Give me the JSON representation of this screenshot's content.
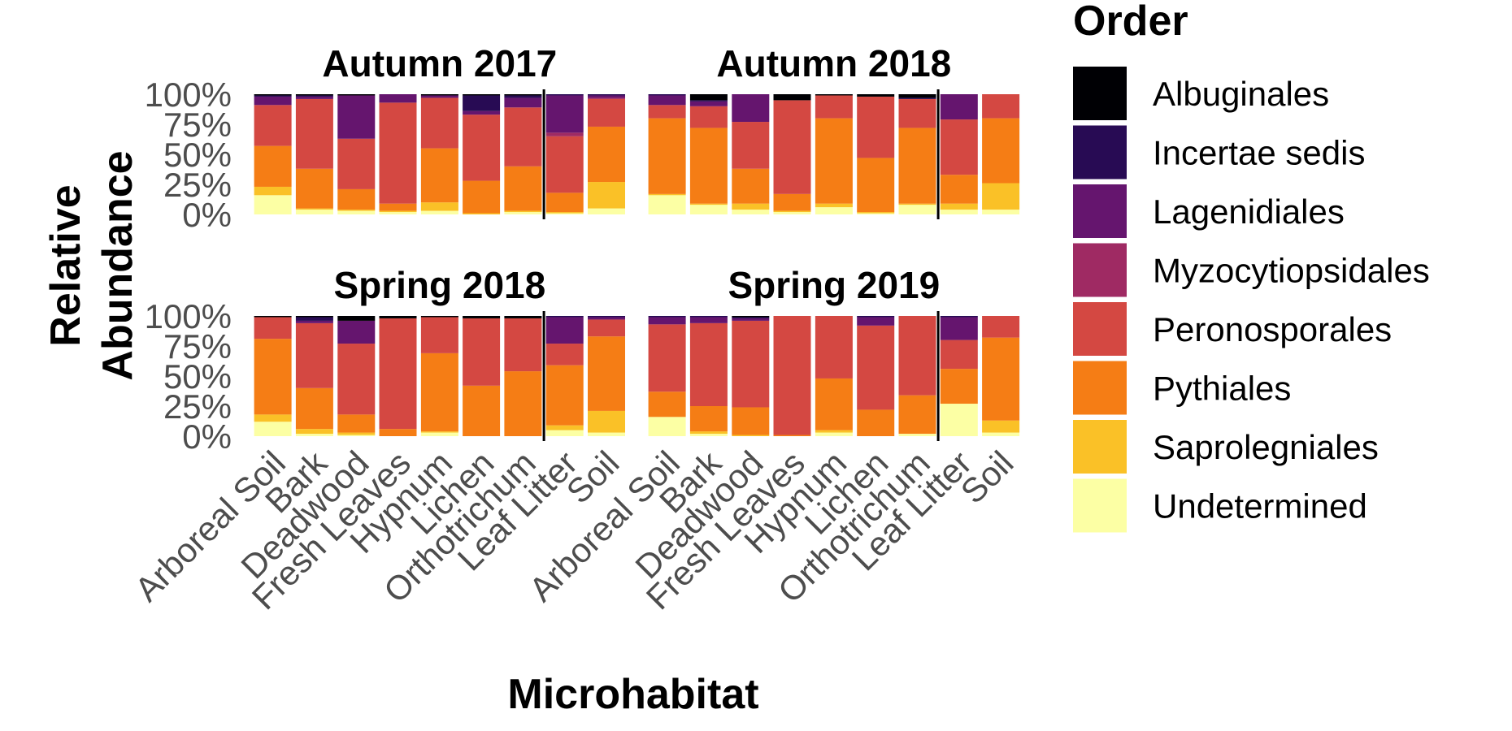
{
  "chart_data": {
    "type": "bar",
    "stacked": true,
    "normalized": true,
    "ylabel": [
      "Relative",
      "Abundance"
    ],
    "xlabel": "Microhabitat",
    "yticks": [
      "0%",
      "25%",
      "50%",
      "75%",
      "100%"
    ],
    "ylim": [
      0,
      1
    ],
    "categories": [
      "Arboreal Soil",
      "Bark",
      "Deadwood",
      "Fresh Leaves",
      "Hypnum",
      "Lichen",
      "Orthotrichum",
      "Leaf Litter",
      "Soil"
    ],
    "divider_after": "Orthotrichum",
    "legend": {
      "title": "Order",
      "position": "right",
      "entries": [
        {
          "name": "Albuginales",
          "color": "#000004"
        },
        {
          "name": "Incertae sedis",
          "color": "#280b54"
        },
        {
          "name": "Lagenidiales",
          "color": "#65156e"
        },
        {
          "name": "Myzocytiopsidales",
          "color": "#9f2a63"
        },
        {
          "name": "Peronosporales",
          "color": "#d44842"
        },
        {
          "name": "Pythiales",
          "color": "#f57d15"
        },
        {
          "name": "Saprolegniales",
          "color": "#fac127"
        },
        {
          "name": "Undetermined",
          "color": "#fcffa4"
        }
      ]
    },
    "stack_order_bottom_to_top": [
      "Undetermined",
      "Saprolegniales",
      "Pythiales",
      "Peronosporales",
      "Myzocytiopsidales",
      "Lagenidiales",
      "Incertae sedis",
      "Albuginales"
    ],
    "panels": [
      {
        "title": "Autumn 2017",
        "bars": [
          {
            "category": "Arboreal Soil",
            "values": {
              "Undetermined": 0.16,
              "Saprolegniales": 0.07,
              "Pythiales": 0.34,
              "Peronosporales": 0.34,
              "Myzocytiopsidales": 0.0,
              "Lagenidiales": 0.07,
              "Incertae sedis": 0.01,
              "Albuginales": 0.01
            }
          },
          {
            "category": "Bark",
            "values": {
              "Undetermined": 0.04,
              "Saprolegniales": 0.01,
              "Pythiales": 0.33,
              "Peronosporales": 0.58,
              "Myzocytiopsidales": 0.0,
              "Lagenidiales": 0.02,
              "Incertae sedis": 0.01,
              "Albuginales": 0.01
            }
          },
          {
            "category": "Deadwood",
            "values": {
              "Undetermined": 0.03,
              "Saprolegniales": 0.01,
              "Pythiales": 0.17,
              "Peronosporales": 0.42,
              "Myzocytiopsidales": 0.0,
              "Lagenidiales": 0.36,
              "Incertae sedis": 0.0,
              "Albuginales": 0.01
            }
          },
          {
            "category": "Fresh Leaves",
            "values": {
              "Undetermined": 0.02,
              "Saprolegniales": 0.01,
              "Pythiales": 0.06,
              "Peronosporales": 0.84,
              "Myzocytiopsidales": 0.0,
              "Lagenidiales": 0.07,
              "Incertae sedis": 0.0,
              "Albuginales": 0.0
            }
          },
          {
            "category": "Hypnum",
            "values": {
              "Undetermined": 0.03,
              "Saprolegniales": 0.07,
              "Pythiales": 0.45,
              "Peronosporales": 0.42,
              "Myzocytiopsidales": 0.0,
              "Lagenidiales": 0.02,
              "Incertae sedis": 0.0,
              "Albuginales": 0.01
            }
          },
          {
            "category": "Lichen",
            "values": {
              "Undetermined": 0.0,
              "Saprolegniales": 0.01,
              "Pythiales": 0.27,
              "Peronosporales": 0.55,
              "Myzocytiopsidales": 0.0,
              "Lagenidiales": 0.03,
              "Incertae sedis": 0.13,
              "Albuginales": 0.01
            }
          },
          {
            "category": "Orthotrichum",
            "values": {
              "Undetermined": 0.02,
              "Saprolegniales": 0.01,
              "Pythiales": 0.37,
              "Peronosporales": 0.49,
              "Myzocytiopsidales": 0.0,
              "Lagenidiales": 0.08,
              "Incertae sedis": 0.02,
              "Albuginales": 0.01
            }
          },
          {
            "category": "Leaf Litter",
            "values": {
              "Undetermined": 0.01,
              "Saprolegniales": 0.01,
              "Pythiales": 0.16,
              "Peronosporales": 0.47,
              "Myzocytiopsidales": 0.03,
              "Lagenidiales": 0.31,
              "Incertae sedis": 0.01,
              "Albuginales": 0.0
            }
          },
          {
            "category": "Soil",
            "values": {
              "Undetermined": 0.05,
              "Saprolegniales": 0.22,
              "Pythiales": 0.46,
              "Peronosporales": 0.23,
              "Myzocytiopsidales": 0.01,
              "Lagenidiales": 0.02,
              "Incertae sedis": 0.01,
              "Albuginales": 0.0
            }
          }
        ]
      },
      {
        "title": "Autumn 2018",
        "bars": [
          {
            "category": "Arboreal Soil",
            "values": {
              "Undetermined": 0.16,
              "Saprolegniales": 0.01,
              "Pythiales": 0.63,
              "Peronosporales": 0.11,
              "Myzocytiopsidales": 0.0,
              "Lagenidiales": 0.08,
              "Incertae sedis": 0.01,
              "Albuginales": 0.0
            }
          },
          {
            "category": "Bark",
            "values": {
              "Undetermined": 0.08,
              "Saprolegniales": 0.01,
              "Pythiales": 0.63,
              "Peronosporales": 0.18,
              "Myzocytiopsidales": 0.0,
              "Lagenidiales": 0.04,
              "Incertae sedis": 0.01,
              "Albuginales": 0.05
            }
          },
          {
            "category": "Deadwood",
            "values": {
              "Undetermined": 0.04,
              "Saprolegniales": 0.05,
              "Pythiales": 0.29,
              "Peronosporales": 0.39,
              "Myzocytiopsidales": 0.0,
              "Lagenidiales": 0.23,
              "Incertae sedis": 0.0,
              "Albuginales": 0.0
            }
          },
          {
            "category": "Fresh Leaves",
            "values": {
              "Undetermined": 0.02,
              "Saprolegniales": 0.01,
              "Pythiales": 0.14,
              "Peronosporales": 0.78,
              "Myzocytiopsidales": 0.0,
              "Lagenidiales": 0.0,
              "Incertae sedis": 0.0,
              "Albuginales": 0.05
            }
          },
          {
            "category": "Hypnum",
            "values": {
              "Undetermined": 0.06,
              "Saprolegniales": 0.03,
              "Pythiales": 0.71,
              "Peronosporales": 0.19,
              "Myzocytiopsidales": 0.0,
              "Lagenidiales": 0.0,
              "Incertae sedis": 0.0,
              "Albuginales": 0.01
            }
          },
          {
            "category": "Lichen",
            "values": {
              "Undetermined": 0.01,
              "Saprolegniales": 0.01,
              "Pythiales": 0.45,
              "Peronosporales": 0.51,
              "Myzocytiopsidales": 0.0,
              "Lagenidiales": 0.0,
              "Incertae sedis": 0.0,
              "Albuginales": 0.02
            }
          },
          {
            "category": "Orthotrichum",
            "values": {
              "Undetermined": 0.08,
              "Saprolegniales": 0.01,
              "Pythiales": 0.63,
              "Peronosporales": 0.24,
              "Myzocytiopsidales": 0.0,
              "Lagenidiales": 0.0,
              "Incertae sedis": 0.01,
              "Albuginales": 0.03
            }
          },
          {
            "category": "Leaf Litter",
            "values": {
              "Undetermined": 0.04,
              "Saprolegniales": 0.05,
              "Pythiales": 0.24,
              "Peronosporales": 0.46,
              "Myzocytiopsidales": 0.0,
              "Lagenidiales": 0.21,
              "Incertae sedis": 0.0,
              "Albuginales": 0.0
            }
          },
          {
            "category": "Soil",
            "values": {
              "Undetermined": 0.04,
              "Saprolegniales": 0.22,
              "Pythiales": 0.54,
              "Peronosporales": 0.2,
              "Myzocytiopsidales": 0.0,
              "Lagenidiales": 0.0,
              "Incertae sedis": 0.0,
              "Albuginales": 0.0
            }
          }
        ]
      },
      {
        "title": "Spring 2018",
        "bars": [
          {
            "category": "Arboreal Soil",
            "values": {
              "Undetermined": 0.12,
              "Saprolegniales": 0.06,
              "Pythiales": 0.63,
              "Peronosporales": 0.18,
              "Myzocytiopsidales": 0.0,
              "Lagenidiales": 0.0,
              "Incertae sedis": 0.0,
              "Albuginales": 0.01
            }
          },
          {
            "category": "Bark",
            "values": {
              "Undetermined": 0.02,
              "Saprolegniales": 0.04,
              "Pythiales": 0.34,
              "Peronosporales": 0.54,
              "Myzocytiopsidales": 0.0,
              "Lagenidiales": 0.02,
              "Incertae sedis": 0.03,
              "Albuginales": 0.01
            }
          },
          {
            "category": "Deadwood",
            "values": {
              "Undetermined": 0.01,
              "Saprolegniales": 0.02,
              "Pythiales": 0.15,
              "Peronosporales": 0.59,
              "Myzocytiopsidales": 0.0,
              "Lagenidiales": 0.19,
              "Incertae sedis": 0.0,
              "Albuginales": 0.04
            }
          },
          {
            "category": "Fresh Leaves",
            "values": {
              "Undetermined": 0.0,
              "Saprolegniales": 0.0,
              "Pythiales": 0.06,
              "Peronosporales": 0.92,
              "Myzocytiopsidales": 0.0,
              "Lagenidiales": 0.0,
              "Incertae sedis": 0.0,
              "Albuginales": 0.02
            }
          },
          {
            "category": "Hypnum",
            "values": {
              "Undetermined": 0.03,
              "Saprolegniales": 0.01,
              "Pythiales": 0.65,
              "Peronosporales": 0.3,
              "Myzocytiopsidales": 0.0,
              "Lagenidiales": 0.0,
              "Incertae sedis": 0.0,
              "Albuginales": 0.01
            }
          },
          {
            "category": "Lichen",
            "values": {
              "Undetermined": 0.0,
              "Saprolegniales": 0.0,
              "Pythiales": 0.42,
              "Peronosporales": 0.56,
              "Myzocytiopsidales": 0.0,
              "Lagenidiales": 0.0,
              "Incertae sedis": 0.0,
              "Albuginales": 0.02
            }
          },
          {
            "category": "Orthotrichum",
            "values": {
              "Undetermined": 0.0,
              "Saprolegniales": 0.0,
              "Pythiales": 0.54,
              "Peronosporales": 0.44,
              "Myzocytiopsidales": 0.0,
              "Lagenidiales": 0.0,
              "Incertae sedis": 0.0,
              "Albuginales": 0.02
            }
          },
          {
            "category": "Leaf Litter",
            "values": {
              "Undetermined": 0.05,
              "Saprolegniales": 0.04,
              "Pythiales": 0.5,
              "Peronosporales": 0.18,
              "Myzocytiopsidales": 0.0,
              "Lagenidiales": 0.22,
              "Incertae sedis": 0.01,
              "Albuginales": 0.0
            }
          },
          {
            "category": "Soil",
            "values": {
              "Undetermined": 0.03,
              "Saprolegniales": 0.18,
              "Pythiales": 0.62,
              "Peronosporales": 0.14,
              "Myzocytiopsidales": 0.0,
              "Lagenidiales": 0.02,
              "Incertae sedis": 0.01,
              "Albuginales": 0.0
            }
          }
        ]
      },
      {
        "title": "Spring 2019",
        "bars": [
          {
            "category": "Arboreal Soil",
            "values": {
              "Undetermined": 0.16,
              "Saprolegniales": 0.0,
              "Pythiales": 0.21,
              "Peronosporales": 0.56,
              "Myzocytiopsidales": 0.0,
              "Lagenidiales": 0.06,
              "Incertae sedis": 0.01,
              "Albuginales": 0.0
            }
          },
          {
            "category": "Bark",
            "values": {
              "Undetermined": 0.02,
              "Saprolegniales": 0.02,
              "Pythiales": 0.21,
              "Peronosporales": 0.69,
              "Myzocytiopsidales": 0.0,
              "Lagenidiales": 0.05,
              "Incertae sedis": 0.01,
              "Albuginales": 0.0
            }
          },
          {
            "category": "Deadwood",
            "values": {
              "Undetermined": 0.0,
              "Saprolegniales": 0.01,
              "Pythiales": 0.23,
              "Peronosporales": 0.72,
              "Myzocytiopsidales": 0.0,
              "Lagenidiales": 0.02,
              "Incertae sedis": 0.01,
              "Albuginales": 0.01
            }
          },
          {
            "category": "Fresh Leaves",
            "values": {
              "Undetermined": 0.0,
              "Saprolegniales": 0.0,
              "Pythiales": 0.01,
              "Peronosporales": 0.99,
              "Myzocytiopsidales": 0.0,
              "Lagenidiales": 0.0,
              "Incertae sedis": 0.0,
              "Albuginales": 0.0
            }
          },
          {
            "category": "Hypnum",
            "values": {
              "Undetermined": 0.03,
              "Saprolegniales": 0.02,
              "Pythiales": 0.43,
              "Peronosporales": 0.52,
              "Myzocytiopsidales": 0.0,
              "Lagenidiales": 0.0,
              "Incertae sedis": 0.0,
              "Albuginales": 0.0
            }
          },
          {
            "category": "Lichen",
            "values": {
              "Undetermined": 0.0,
              "Saprolegniales": 0.0,
              "Pythiales": 0.22,
              "Peronosporales": 0.7,
              "Myzocytiopsidales": 0.0,
              "Lagenidiales": 0.07,
              "Incertae sedis": 0.01,
              "Albuginales": 0.0
            }
          },
          {
            "category": "Orthotrichum",
            "values": {
              "Undetermined": 0.02,
              "Saprolegniales": 0.0,
              "Pythiales": 0.32,
              "Peronosporales": 0.66,
              "Myzocytiopsidales": 0.0,
              "Lagenidiales": 0.0,
              "Incertae sedis": 0.0,
              "Albuginales": 0.0
            }
          },
          {
            "category": "Leaf Litter",
            "values": {
              "Undetermined": 0.27,
              "Saprolegniales": 0.0,
              "Pythiales": 0.29,
              "Peronosporales": 0.24,
              "Myzocytiopsidales": 0.0,
              "Lagenidiales": 0.19,
              "Incertae sedis": 0.01,
              "Albuginales": 0.0
            }
          },
          {
            "category": "Soil",
            "values": {
              "Undetermined": 0.03,
              "Saprolegniales": 0.1,
              "Pythiales": 0.69,
              "Peronosporales": 0.18,
              "Myzocytiopsidales": 0.0,
              "Lagenidiales": 0.0,
              "Incertae sedis": 0.0,
              "Albuginales": 0.0
            }
          }
        ]
      }
    ]
  }
}
